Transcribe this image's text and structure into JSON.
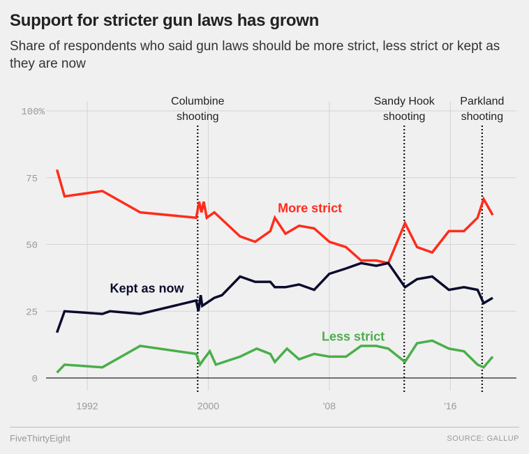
{
  "title": "Support for stricter gun laws has grown",
  "subtitle": "Share of respondents who said gun laws should be more strict, less strict or kept as they are now",
  "footer": {
    "brand": "FiveThirtyEight",
    "source": "SOURCE: GALLUP"
  },
  "chart_data": {
    "type": "line",
    "title": "Support for stricter gun laws has grown",
    "xlabel": "",
    "ylabel": "",
    "xlim": [
      1989.5,
      2019.8
    ],
    "ylim": [
      0,
      100
    ],
    "grid": true,
    "x_ticks": [
      {
        "value": 1992,
        "label": "1992"
      },
      {
        "value": 2000,
        "label": "2000"
      },
      {
        "value": 2008,
        "label": "'08"
      },
      {
        "value": 2016,
        "label": "'16"
      }
    ],
    "y_ticks": [
      {
        "value": 0,
        "label": "0"
      },
      {
        "value": 25,
        "label": "25"
      },
      {
        "value": 50,
        "label": "50"
      },
      {
        "value": 75,
        "label": "75"
      },
      {
        "value": 100,
        "label": "100%"
      }
    ],
    "annotations": [
      {
        "x": 1999.3,
        "label_line1": "Columbine",
        "label_line2": "shooting"
      },
      {
        "x": 2012.95,
        "label_line1": "Sandy Hook",
        "label_line2": "shooting"
      },
      {
        "x": 2018.1,
        "label_line1": "Parkland",
        "label_line2": "shooting"
      }
    ],
    "series": [
      {
        "name": "More strict",
        "color": "#ff2c1c",
        "label_pos": [
          2004.6,
          62
        ],
        "points": [
          [
            1990,
            78
          ],
          [
            1990.5,
            68
          ],
          [
            1993,
            70
          ],
          [
            1995.5,
            62
          ],
          [
            1999.2,
            60
          ],
          [
            1999.4,
            66
          ],
          [
            1999.55,
            62
          ],
          [
            1999.7,
            66
          ],
          [
            1999.9,
            60
          ],
          [
            2000.4,
            62
          ],
          [
            2002.1,
            53
          ],
          [
            2003.1,
            51
          ],
          [
            2004.1,
            55
          ],
          [
            2004.4,
            60
          ],
          [
            2005.1,
            54
          ],
          [
            2006,
            57
          ],
          [
            2007,
            56
          ],
          [
            2008,
            51
          ],
          [
            2009.1,
            49
          ],
          [
            2010.1,
            44
          ],
          [
            2011.1,
            44
          ],
          [
            2011.9,
            43
          ],
          [
            2013,
            58
          ],
          [
            2013.8,
            49
          ],
          [
            2014.8,
            47
          ],
          [
            2015.9,
            55
          ],
          [
            2016.9,
            55
          ],
          [
            2017.8,
            60
          ],
          [
            2018.2,
            67
          ],
          [
            2018.8,
            61
          ]
        ]
      },
      {
        "name": "Kept as now",
        "color": "#0b0b2e",
        "label_pos": [
          1993.5,
          32
        ],
        "points": [
          [
            1990,
            17
          ],
          [
            1990.5,
            25
          ],
          [
            1993,
            24
          ],
          [
            1993.5,
            25
          ],
          [
            1995.5,
            24
          ],
          [
            1999.2,
            29
          ],
          [
            1999.35,
            25
          ],
          [
            1999.5,
            31
          ],
          [
            1999.6,
            27
          ],
          [
            2000.4,
            30
          ],
          [
            2000.9,
            31
          ],
          [
            2002.1,
            38
          ],
          [
            2003.1,
            36
          ],
          [
            2004.1,
            36
          ],
          [
            2004.4,
            34
          ],
          [
            2005.1,
            34
          ],
          [
            2006,
            35
          ],
          [
            2007,
            33
          ],
          [
            2008,
            39
          ],
          [
            2009.1,
            41
          ],
          [
            2010.1,
            43
          ],
          [
            2011.1,
            42
          ],
          [
            2011.9,
            43
          ],
          [
            2013,
            34
          ],
          [
            2013.8,
            37
          ],
          [
            2014.8,
            38
          ],
          [
            2015.9,
            33
          ],
          [
            2016.9,
            34
          ],
          [
            2017.8,
            33
          ],
          [
            2018.2,
            28
          ],
          [
            2018.8,
            30
          ]
        ]
      },
      {
        "name": "Less strict",
        "color": "#4aae4a",
        "label_pos": [
          2007.5,
          14
        ],
        "points": [
          [
            1990,
            2
          ],
          [
            1990.5,
            5
          ],
          [
            1993,
            4
          ],
          [
            1995.5,
            12
          ],
          [
            1999.2,
            9
          ],
          [
            1999.45,
            5
          ],
          [
            1999.7,
            7
          ],
          [
            2000.1,
            10
          ],
          [
            2000.5,
            5
          ],
          [
            2002.1,
            8
          ],
          [
            2003.2,
            11
          ],
          [
            2004.1,
            9
          ],
          [
            2004.4,
            6
          ],
          [
            2005.2,
            11
          ],
          [
            2006,
            7
          ],
          [
            2007,
            9
          ],
          [
            2008,
            8
          ],
          [
            2009.1,
            8
          ],
          [
            2010.1,
            12
          ],
          [
            2011.1,
            12
          ],
          [
            2011.9,
            11
          ],
          [
            2013,
            6
          ],
          [
            2013.8,
            13
          ],
          [
            2014.8,
            14
          ],
          [
            2015.9,
            11
          ],
          [
            2016.9,
            10
          ],
          [
            2017.8,
            5
          ],
          [
            2018.2,
            4
          ],
          [
            2018.8,
            8
          ]
        ]
      }
    ]
  }
}
